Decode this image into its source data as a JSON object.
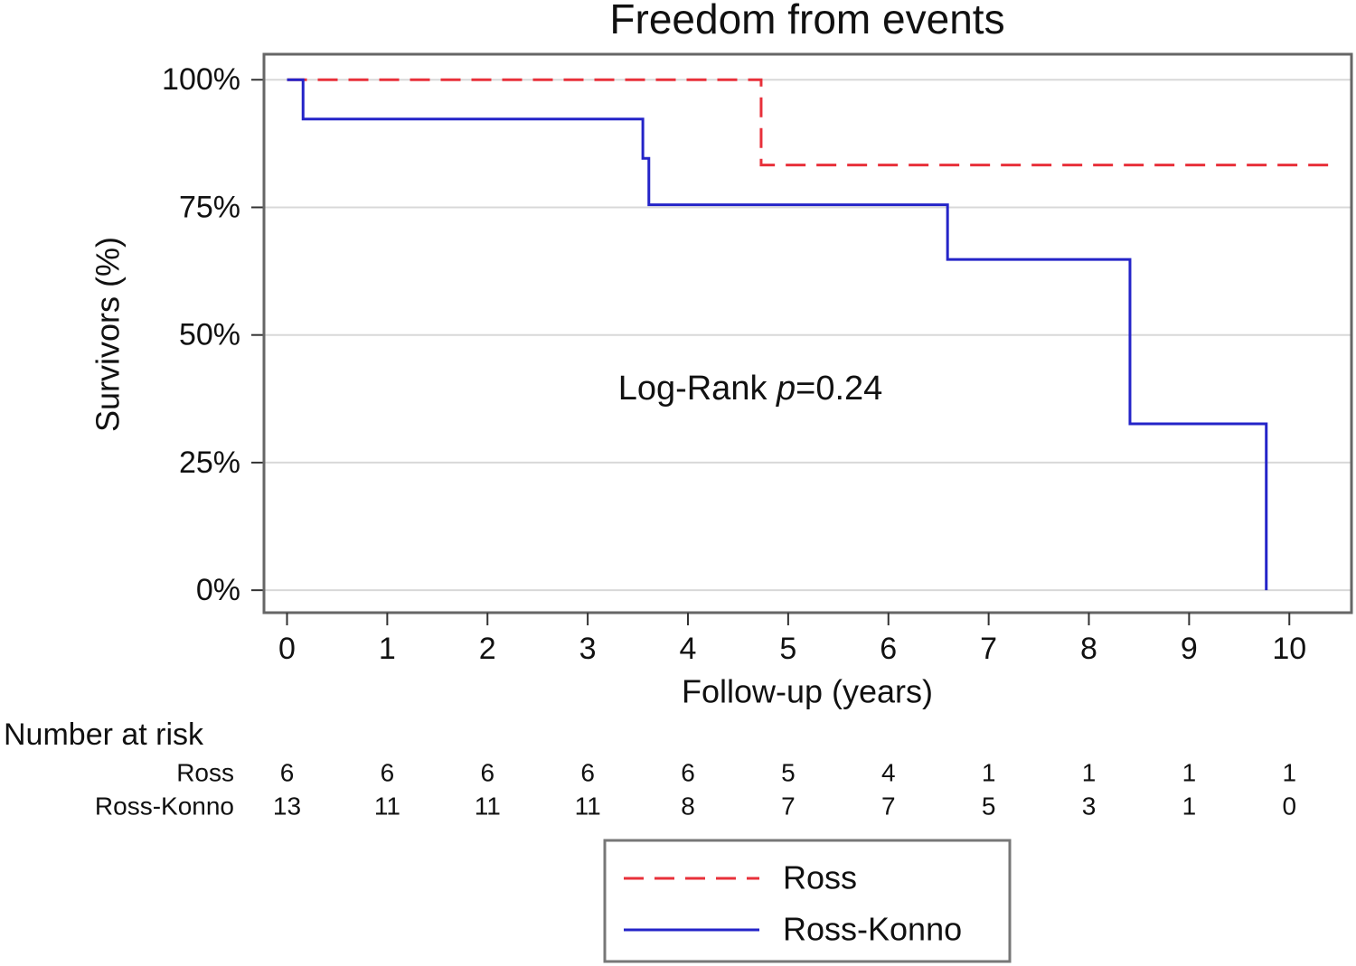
{
  "chart_data": {
    "type": "step-line",
    "title": "Freedom from events",
    "xlabel": "Follow-up (years)",
    "ylabel": "Survivors (%)",
    "xlim": [
      -0.23,
      10.62
    ],
    "ylim": [
      -4.4,
      105
    ],
    "xticks": [
      0,
      1,
      2,
      3,
      4,
      5,
      6,
      7,
      8,
      9,
      10
    ],
    "yticks": [
      {
        "value": 0,
        "label": "0%"
      },
      {
        "value": 25,
        "label": "25%"
      },
      {
        "value": 50,
        "label": "50%"
      },
      {
        "value": 75,
        "label": "75%"
      },
      {
        "value": 100,
        "label": "100%"
      }
    ],
    "grid": true,
    "annotation": [
      "Log-Rank ",
      "p",
      "=0.24"
    ],
    "series": [
      {
        "name": "Ross",
        "color": "#e8303a",
        "dash": true,
        "x": [
          0,
          4.73,
          4.73,
          10.4
        ],
        "values": [
          100,
          100,
          83.3,
          83.3
        ]
      },
      {
        "name": "Ross-Konno",
        "color": "#2424c8",
        "dash": false,
        "x": [
          0,
          0.16,
          0.16,
          3.55,
          3.55,
          3.61,
          3.61,
          6.59,
          6.59,
          8.41,
          8.41,
          9.77,
          9.77
        ],
        "values": [
          100,
          100,
          92.3,
          92.3,
          84.6,
          84.6,
          75.5,
          75.5,
          64.8,
          64.8,
          32.6,
          32.6,
          0
        ]
      }
    ],
    "risk_table": {
      "title": "Number at risk",
      "rows": [
        {
          "name": "Ross",
          "values": [
            6,
            6,
            6,
            6,
            6,
            5,
            4,
            1,
            1,
            1,
            1
          ]
        },
        {
          "name": "Ross-Konno",
          "values": [
            13,
            11,
            11,
            11,
            8,
            7,
            7,
            5,
            3,
            1,
            0
          ]
        }
      ]
    },
    "legend": "bottom"
  }
}
